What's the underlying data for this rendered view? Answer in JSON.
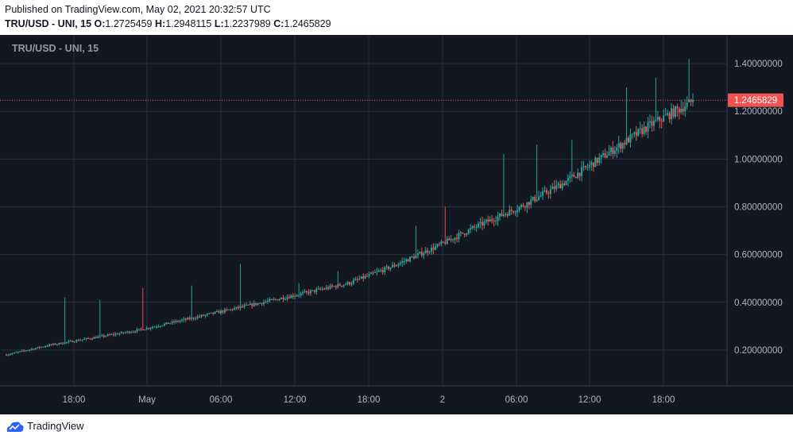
{
  "header": {
    "published": "Published on TradingView.com, May 02, 2021 20:32:57 UTC",
    "symbol": "TRU/USD - UNI, 15",
    "o_label": "O:",
    "o_value": "1.2725459",
    "h_label": "H:",
    "h_value": "1.2948115",
    "l_label": "L:",
    "l_value": "1.2237989",
    "c_label": "C:",
    "c_value": "1.2465829"
  },
  "footer": {
    "brand": "TradingView"
  },
  "colors": {
    "bg": "#131722",
    "up": "#26a69a",
    "down": "#ef5350",
    "grid": "#2a2e39",
    "axis_text": "#b2b5be"
  },
  "chart_data": {
    "type": "candlestick",
    "title": "TRU/USD - UNI, 15",
    "y_tick_labels": [
      "0.20000000",
      "0.40000000",
      "0.60000000",
      "0.80000000",
      "1.00000000",
      "1.20000000",
      "1.40000000"
    ],
    "y_ticks": [
      0.2,
      0.4,
      0.6,
      0.8,
      1.0,
      1.2,
      1.4
    ],
    "ylim": [
      0.05,
      1.52
    ],
    "x_tick_labels": [
      "18:00",
      "May",
      "06:00",
      "12:00",
      "18:00",
      "2",
      "06:00",
      "12:00",
      "18:00"
    ],
    "last_price": 1.2465829,
    "last_price_label": "1.2465829",
    "anchors": [
      [
        0,
        0.18
      ],
      [
        22,
        0.22
      ],
      [
        44,
        0.25
      ],
      [
        66,
        0.28
      ],
      [
        88,
        0.32
      ],
      [
        110,
        0.36
      ],
      [
        132,
        0.4
      ],
      [
        154,
        0.44
      ],
      [
        176,
        0.48
      ],
      [
        198,
        0.55
      ],
      [
        220,
        0.63
      ],
      [
        242,
        0.72
      ],
      [
        264,
        0.8
      ],
      [
        286,
        0.9
      ],
      [
        308,
        1.02
      ],
      [
        330,
        1.14
      ],
      [
        352,
        1.24
      ]
    ],
    "candle_count": 353,
    "spikes": [
      [
        30,
        0.42
      ],
      [
        48,
        0.41
      ],
      [
        70,
        0.46
      ],
      [
        95,
        0.47
      ],
      [
        120,
        0.56
      ],
      [
        150,
        0.48
      ],
      [
        170,
        0.53
      ],
      [
        210,
        0.72
      ],
      [
        225,
        0.8
      ],
      [
        255,
        1.02
      ],
      [
        272,
        1.06
      ],
      [
        290,
        1.08
      ],
      [
        318,
        1.3
      ],
      [
        333,
        1.34
      ],
      [
        350,
        1.42
      ]
    ]
  }
}
